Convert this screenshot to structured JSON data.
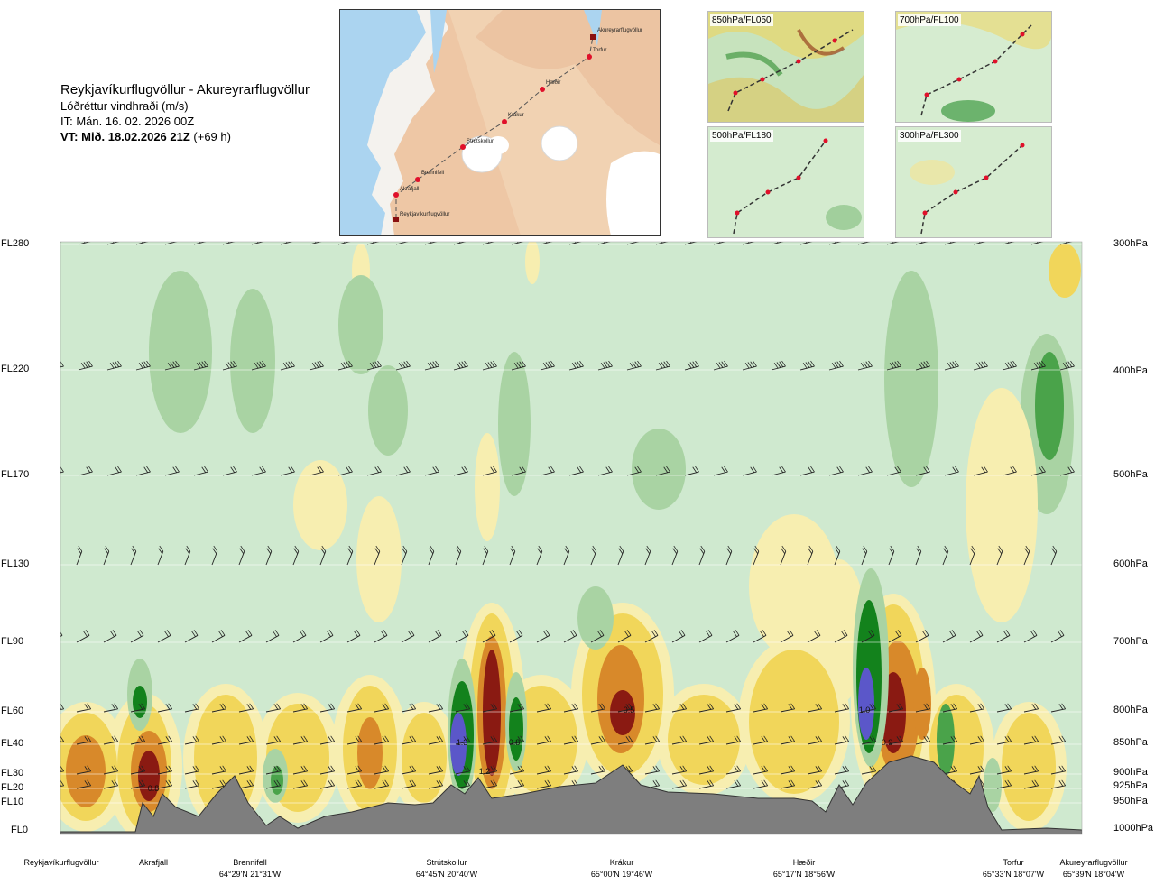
{
  "header": {
    "route": "Reykjavíkurflugvöllur - Akureyrarflugvöllur",
    "field": "Lóðréttur vindhraði (m/s)",
    "it": "IT: Mán. 16. 02. 2026 00Z",
    "vt_bold": "VT: Mið. 18.02.2026 21Z",
    "vt_rest": " (+69 h)"
  },
  "map": {
    "places": [
      "Akureyrarflugvöllur",
      "Torfur",
      "Hæðir",
      "Krákur",
      "Strútskollur",
      "Brennifell",
      "Akrafjall",
      "Reykjavíkurflugvöllur"
    ]
  },
  "panels": [
    {
      "label": "850hPa/FL050"
    },
    {
      "label": "700hPa/FL100"
    },
    {
      "label": "500hPa/FL180"
    },
    {
      "label": "300hPa/FL300"
    }
  ],
  "chart_data": {
    "type": "heatmap",
    "title": "Reykjavíkurflugvöllur - Akureyrarflugvöllur",
    "variable": "Lóðréttur vindhraði (m/s)",
    "flight_levels": [
      "FL280",
      "FL220",
      "FL170",
      "FL130",
      "FL90",
      "FL60",
      "FL40",
      "FL30",
      "FL20",
      "FL10",
      "FL0"
    ],
    "pressure_levels": [
      "300hPa",
      "400hPa",
      "500hPa",
      "600hPa",
      "700hPa",
      "800hPa",
      "850hPa",
      "900hPa",
      "925hPa",
      "950hPa",
      "1000hPa"
    ],
    "contour_labels": [
      "1.3",
      "0.8",
      "1.2",
      "0.5",
      "1.0",
      "0.9",
      "0.8"
    ],
    "waypoints": [
      {
        "name": "Reykjavíkurflugvöllur",
        "coord": ""
      },
      {
        "name": "Akrafjall",
        "coord": ""
      },
      {
        "name": "Brennifell",
        "coord": "64°29'N 21°31'W"
      },
      {
        "name": "Strútskollur",
        "coord": "64°45'N 20°40'W"
      },
      {
        "name": "Krákur",
        "coord": "65°00'N 19°46'W"
      },
      {
        "name": "Hæðir",
        "coord": "65°17'N 18°56'W"
      },
      {
        "name": "Torfur",
        "coord": "65°33'N 18°07'W"
      },
      {
        "name": "Akureyrarflugvöllur",
        "coord": "65°39'N 18°04'W"
      }
    ],
    "colors": {
      "background": "#cfe9cf",
      "strong_up": "#8a1a12",
      "moderate_up": "#d8892a",
      "weak_up": "#f1d65a",
      "slight_up": "#f7eeb0",
      "slight_down": "#a9d3a3",
      "moderate_down": "#4aa34a",
      "strong_down": "#13821c",
      "very_strong_down": "#5b57c9",
      "terrain": "#7e7e7e"
    }
  }
}
